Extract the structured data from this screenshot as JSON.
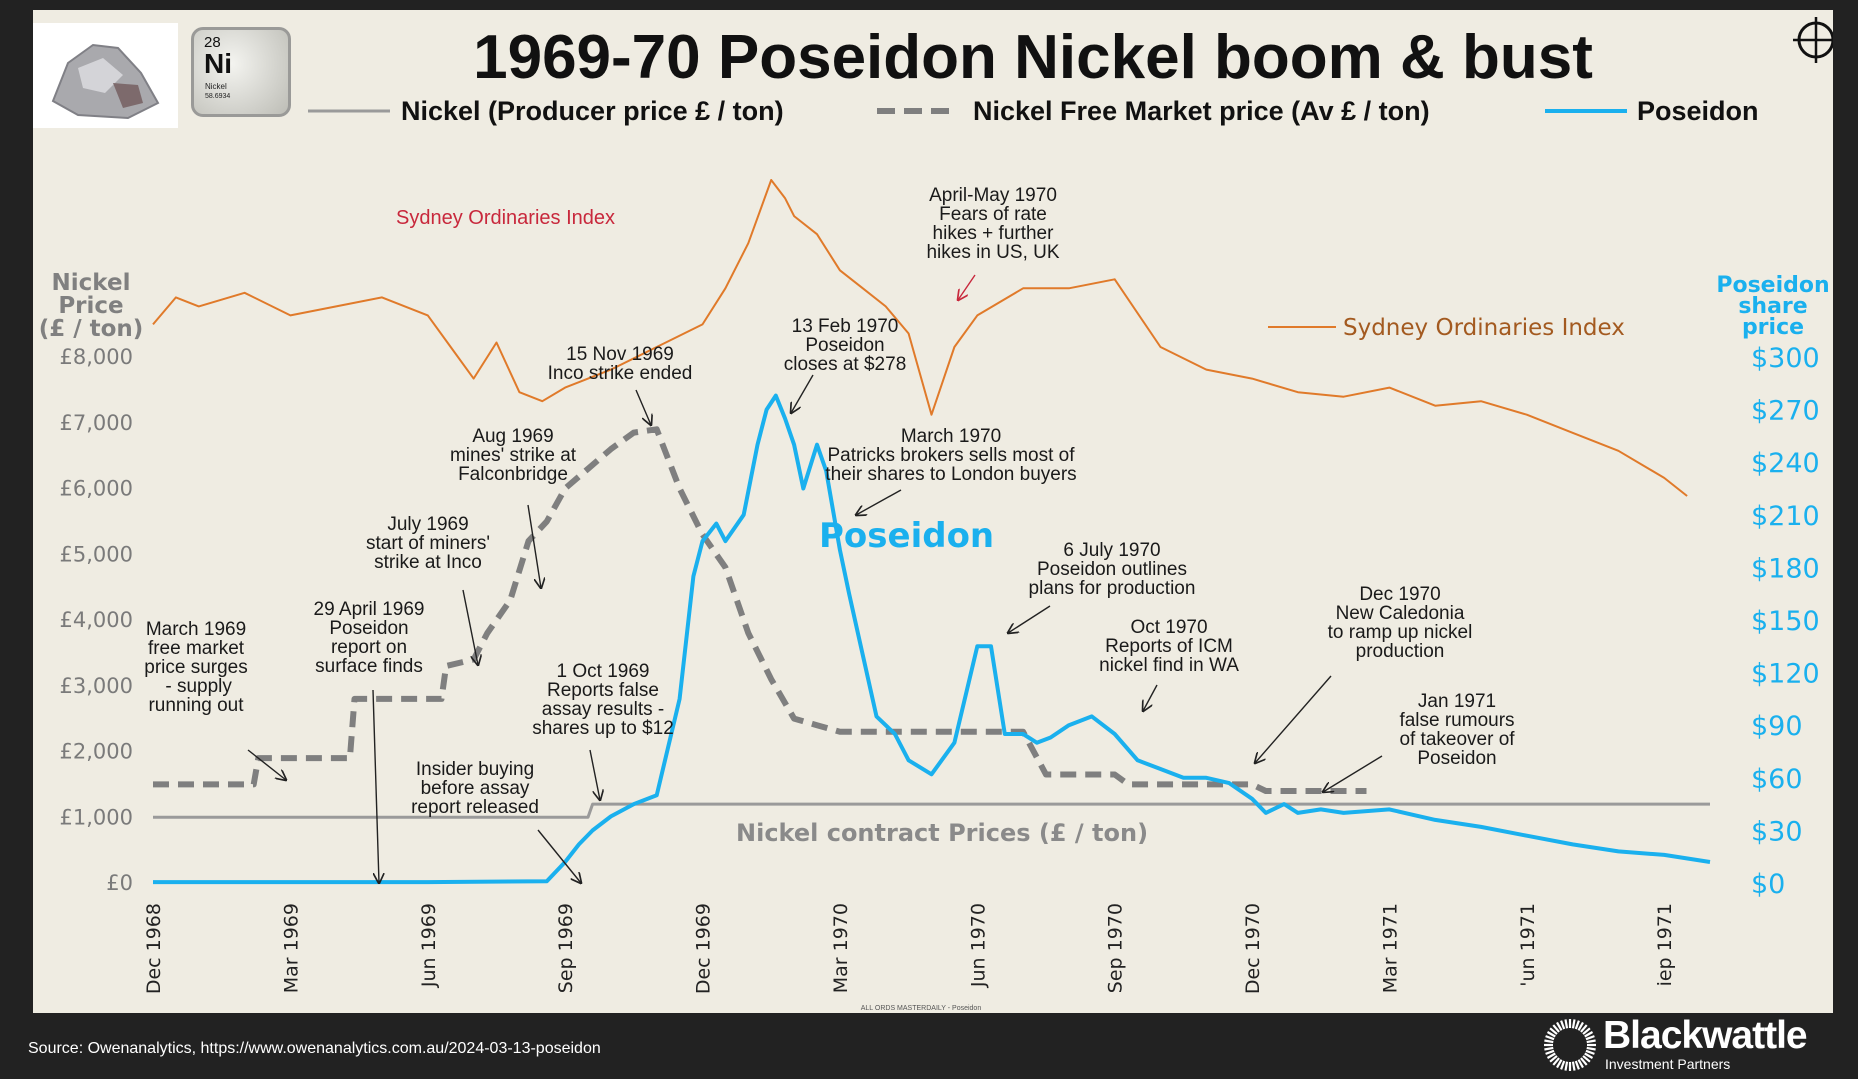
{
  "page": {
    "source_text": "Source: Owenanalytics, https://www.owenanalytics.com.au/2024-03-13-poseidon",
    "brand": {
      "name": "Blackwattle",
      "subtitle": "Investment Partners"
    },
    "element_tile": {
      "number": "28",
      "symbol": "Ni",
      "name": "Nickel",
      "mass": "58.6934"
    }
  },
  "chart_data": {
    "type": "line",
    "title": "1969-70 Poseidon Nickel boom & bust",
    "legend": [
      {
        "name": "Nickel (Producer price £ / ton)",
        "style": "solid",
        "color": "#9a9a9a"
      },
      {
        "name": "Nickel Free Market price (Av £ / ton)",
        "style": "dashed",
        "color": "#7f7f7f"
      },
      {
        "name": "Poseidon",
        "style": "solid",
        "color": "#1ab0ee"
      }
    ],
    "legend_position": "top",
    "xlabel": "",
    "x_ticks": [
      "Dec 1968",
      "Mar 1969",
      "Jun 1969",
      "Sep 1969",
      "Dec 1969",
      "Mar 1970",
      "Jun 1970",
      "Sep 1970",
      "Dec 1970",
      "Mar 1971",
      "'un 1971",
      "iep 1971"
    ],
    "x_range_months": [
      0,
      34
    ],
    "y_left": {
      "label": [
        "Nickel",
        "Price",
        "(£ / ton)"
      ],
      "ticks": [
        "£0",
        "£1,000",
        "£2,000",
        "£3,000",
        "£4,000",
        "£5,000",
        "£6,000",
        "£7,000",
        "£8,000"
      ],
      "range": [
        0,
        8000
      ]
    },
    "y_right": {
      "label": [
        "Poseidon",
        "share",
        "price"
      ],
      "ticks": [
        "$0",
        "$30",
        "$60",
        "$90",
        "$120",
        "$150",
        "$180",
        "$210",
        "$240",
        "$270",
        "$300"
      ],
      "range": [
        0,
        300
      ]
    },
    "grid": false,
    "series": [
      {
        "name": "Nickel (Producer price £ / ton)",
        "axis": "left",
        "x_months": [
          0,
          9.5,
          9.6,
          34
        ],
        "values": [
          1000,
          1000,
          1200,
          1200
        ]
      },
      {
        "name": "Nickel Free Market price (Av £ / ton)",
        "axis": "left",
        "x_months": [
          0,
          2.2,
          2.3,
          4.3,
          4.4,
          6.3,
          6.4,
          7.0,
          7.3,
          7.8,
          8.2,
          8.6,
          9.0,
          9.5,
          10.0,
          10.5,
          11.0,
          11.5,
          12.0,
          12.5,
          13.0,
          13.5,
          14.0,
          14.5,
          15.0,
          17.5,
          18.0,
          19.0,
          19.5,
          21.0,
          21.3,
          24.0,
          24.3,
          26.5
        ],
        "values": [
          1500,
          1500,
          1900,
          1900,
          2800,
          2800,
          3300,
          3400,
          3800,
          4300,
          5200,
          5500,
          6000,
          6300,
          6600,
          6850,
          6900,
          6000,
          5300,
          4800,
          3800,
          3100,
          2500,
          2400,
          2300,
          2300,
          2300,
          2300,
          1650,
          1650,
          1500,
          1500,
          1400,
          1400
        ]
      },
      {
        "name": "Poseidon",
        "axis": "right",
        "x_months": [
          0,
          3,
          6,
          8.6,
          9.0,
          9.3,
          9.6,
          10.0,
          10.5,
          11.0,
          11.5,
          11.8,
          12.0,
          12.3,
          12.5,
          12.9,
          13.2,
          13.4,
          13.6,
          13.8,
          14.0,
          14.2,
          14.5,
          14.7,
          15.0,
          15.2,
          15.5,
          15.8,
          16.2,
          16.5,
          17.0,
          17.5,
          18.0,
          18.3,
          18.6,
          19.0,
          19.3,
          19.6,
          20.0,
          20.5,
          21.0,
          21.5,
          22.0,
          22.5,
          23.0,
          23.5,
          24.0,
          24.3,
          24.7,
          25.0,
          25.5,
          26.0,
          27.0,
          28.0,
          29.0,
          30.0,
          31.0,
          32.0,
          33.0,
          34.0
        ],
        "values": [
          0.5,
          0.5,
          0.5,
          1,
          12,
          22,
          30,
          38,
          45,
          50,
          105,
          175,
          195,
          205,
          195,
          210,
          250,
          270,
          278,
          265,
          250,
          225,
          250,
          235,
          190,
          165,
          130,
          95,
          85,
          70,
          62,
          80,
          135,
          135,
          85,
          85,
          80,
          83,
          90,
          95,
          85,
          70,
          65,
          60,
          60,
          57,
          48,
          40,
          45,
          40,
          42,
          40,
          42,
          36,
          32,
          27,
          22,
          18,
          16,
          12
        ]
      },
      {
        "name": "Sydney Ordinaries Index",
        "axis": "none",
        "note": "relative scale only (no axis ticks shown)",
        "x_months": [
          0,
          0.5,
          1,
          2,
          3,
          4,
          5,
          6,
          6.5,
          7,
          7.5,
          8,
          8.5,
          9,
          10,
          11,
          12,
          12.5,
          13,
          13.5,
          13.8,
          14,
          14.5,
          15,
          15.5,
          16,
          16.5,
          17,
          17.5,
          18,
          19,
          20,
          21,
          22,
          23,
          24,
          25,
          26,
          27,
          28,
          29,
          30,
          31,
          32,
          33,
          33.5
        ],
        "values": [
          60,
          66,
          64,
          67,
          62,
          64,
          66,
          62,
          55,
          48,
          56,
          45,
          43,
          46,
          50,
          55,
          60,
          68,
          78,
          92,
          88,
          84,
          80,
          72,
          68,
          64,
          58,
          40,
          55,
          62,
          68,
          68,
          70,
          55,
          50,
          48,
          45,
          44,
          46,
          42,
          43,
          40,
          36,
          32,
          26,
          22
        ]
      }
    ],
    "annotations": [
      {
        "id": "march-1969",
        "lines": [
          "March 1969",
          "free market",
          "price surges",
          " -  supply",
          "running out"
        ]
      },
      {
        "id": "april-1969",
        "lines": [
          "29 April 1969",
          "Poseidon",
          "report on",
          "surface finds"
        ]
      },
      {
        "id": "insider",
        "lines": [
          "Insider buying",
          "before assay",
          "report released"
        ]
      },
      {
        "id": "july-1969",
        "lines": [
          "July 1969",
          "start of miners'",
          "strike at Inco"
        ]
      },
      {
        "id": "aug-1969",
        "lines": [
          "Aug 1969",
          "mines' strike at",
          "Falconbridge"
        ]
      },
      {
        "id": "oct-1969",
        "lines": [
          "1 Oct 1969",
          "Reports false",
          "assay results -",
          "shares up to $12"
        ]
      },
      {
        "id": "nov-1969",
        "lines": [
          "15 Nov 1969",
          "Inco strike ended"
        ]
      },
      {
        "id": "feb-1970",
        "lines": [
          "13 Feb 1970",
          "Poseidon",
          "closes at $278"
        ]
      },
      {
        "id": "mar-1970",
        "lines": [
          "March 1970",
          "Patricks brokers  sells most of",
          "their shares to London buyers"
        ]
      },
      {
        "id": "apr-may-1970",
        "lines": [
          "April-May 1970",
          "Fears of rate",
          "hikes + further",
          "hikes in US, UK"
        ]
      },
      {
        "id": "jul-1970",
        "lines": [
          "6 July 1970",
          "Poseidon outlines",
          "plans for production"
        ]
      },
      {
        "id": "oct-1970",
        "lines": [
          "Oct 1970",
          "Reports of ICM",
          "nickel find in WA"
        ]
      },
      {
        "id": "dec-1970",
        "lines": [
          "Dec 1970",
          "New Caledonia",
          "to ramp up nickel",
          "production"
        ]
      },
      {
        "id": "jan-1971",
        "lines": [
          "Jan 1971",
          "false rumours",
          "of takeover of",
          "Poseidon"
        ]
      }
    ],
    "series_labels": {
      "poseidon": "Poseidon",
      "contract": "Nickel contract Prices (£ / ton)",
      "sydney_top": "Sydney Ordinaries Index",
      "sydney_right": "Sydney Ordinaries Index"
    },
    "caption": "ALL ORDS MASTERDAILY - Poseidon"
  }
}
